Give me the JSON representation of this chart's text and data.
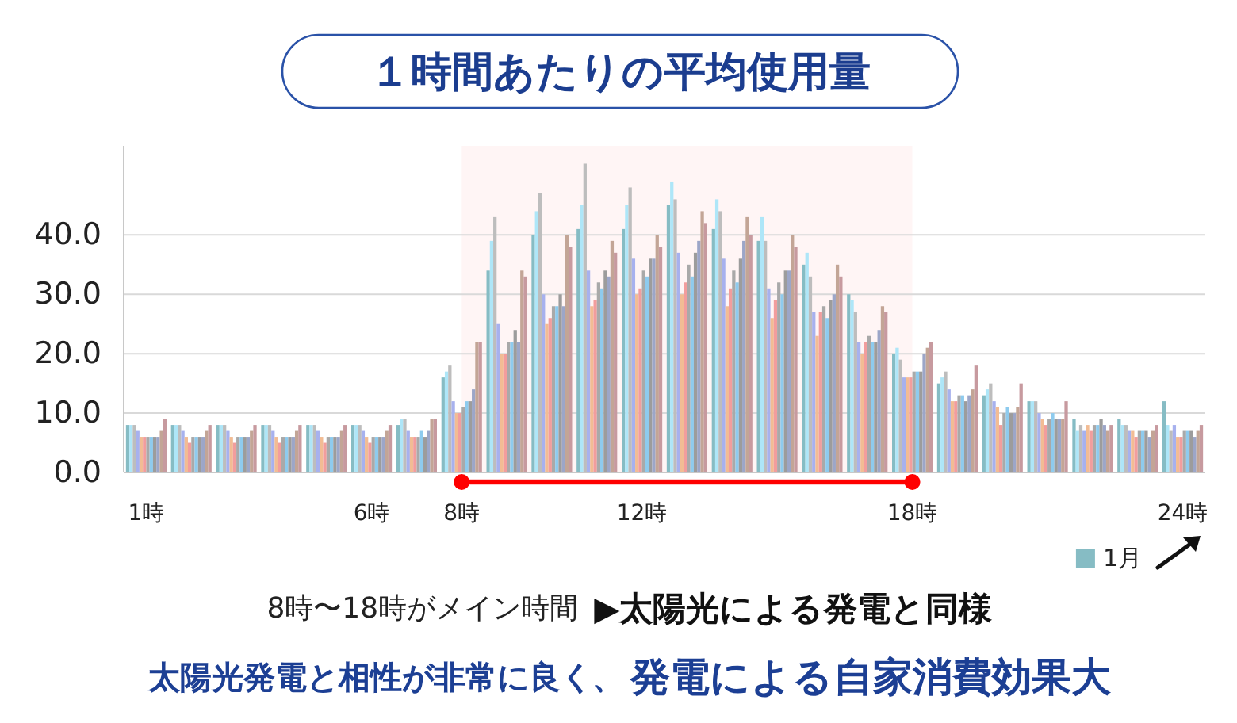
{
  "chart_data": {
    "type": "bar",
    "title": "１時間あたりの平均使用量",
    "x": [
      1,
      2,
      3,
      4,
      5,
      6,
      7,
      8,
      9,
      10,
      11,
      12,
      13,
      14,
      15,
      16,
      17,
      18,
      19,
      20,
      21,
      22,
      23,
      24
    ],
    "xlim": [
      0.5,
      24.5
    ],
    "xticks": [
      {
        "value": 1,
        "label": "1時"
      },
      {
        "value": 6,
        "label": "6時"
      },
      {
        "value": 8,
        "label": "8時"
      },
      {
        "value": 12,
        "label": "12時"
      },
      {
        "value": 18,
        "label": "18時"
      },
      {
        "value": 24,
        "label": "24時"
      }
    ],
    "ylim": [
      0,
      55
    ],
    "yticks": [
      {
        "value": 0,
        "label": "0.0"
      },
      {
        "value": 10,
        "label": "10.0"
      },
      {
        "value": 20,
        "label": "20.0"
      },
      {
        "value": 30,
        "label": "30.0"
      },
      {
        "value": 40,
        "label": "40.0"
      }
    ],
    "grid": "y",
    "legend": "bottom right",
    "bands": [
      {
        "axis": "x",
        "from": 8,
        "to": 18,
        "color": "#ff0000"
      }
    ],
    "annotations": [
      "8時〜18時がメイン時間",
      "▶太陽光による発電と同様",
      "太陽光発電と相性が非常に良く、",
      "発電による自家消費効果大"
    ],
    "series": [
      {
        "name": "1月",
        "color": "#86bcc4",
        "values": [
          8,
          8,
          8,
          8,
          8,
          8,
          8,
          16,
          34,
          40,
          41,
          41,
          45,
          41,
          39,
          35,
          30,
          20,
          15,
          13,
          12,
          9,
          9,
          12
        ]
      },
      {
        "color": "#aee6f8",
        "values": [
          8,
          8,
          8,
          8,
          8,
          8,
          9,
          17,
          39,
          44,
          45,
          45,
          49,
          46,
          43,
          37,
          29,
          21,
          16,
          14,
          12,
          7,
          8,
          8
        ]
      },
      {
        "color": "#bdbdbd",
        "values": [
          8,
          8,
          8,
          8,
          8,
          8,
          9,
          18,
          43,
          47,
          52,
          48,
          46,
          44,
          39,
          33,
          27,
          19,
          17,
          15,
          12,
          8,
          8,
          7
        ]
      },
      {
        "color": "#a7b1ee",
        "values": [
          7,
          7,
          7,
          7,
          7,
          7,
          7,
          12,
          25,
          30,
          34,
          36,
          37,
          36,
          31,
          27,
          22,
          16,
          14,
          12,
          10,
          7,
          7,
          8
        ]
      },
      {
        "color": "#f2bc94",
        "values": [
          6,
          6,
          6,
          6,
          6,
          6,
          6,
          10,
          20,
          25,
          28,
          30,
          30,
          28,
          26,
          23,
          20,
          16,
          12,
          11,
          9,
          8,
          7,
          6
        ]
      },
      {
        "color": "#f29d9d",
        "values": [
          6,
          5,
          5,
          5,
          5,
          5,
          6,
          10,
          20,
          26,
          29,
          31,
          32,
          31,
          29,
          27,
          22,
          16,
          12,
          8,
          8,
          7,
          6,
          6
        ]
      },
      {
        "color": "#a9a9a9",
        "values": [
          6,
          6,
          6,
          6,
          6,
          6,
          6,
          11,
          22,
          28,
          32,
          34,
          35,
          34,
          32,
          28,
          23,
          17,
          13,
          10,
          9,
          8,
          7,
          7
        ]
      },
      {
        "color": "#8ecbee",
        "values": [
          6,
          6,
          6,
          6,
          6,
          6,
          7,
          12,
          22,
          28,
          31,
          33,
          33,
          32,
          30,
          26,
          22,
          17,
          13,
          11,
          10,
          8,
          7,
          7
        ]
      },
      {
        "color": "#9c9c9c",
        "values": [
          6,
          6,
          6,
          6,
          6,
          6,
          6,
          12,
          24,
          30,
          34,
          36,
          37,
          36,
          34,
          29,
          22,
          17,
          12,
          10,
          9,
          9,
          7,
          7
        ]
      },
      {
        "color": "#9ca6c8",
        "values": [
          6,
          6,
          6,
          6,
          6,
          6,
          7,
          14,
          22,
          28,
          33,
          36,
          39,
          39,
          34,
          30,
          24,
          20,
          13,
          10,
          9,
          8,
          6,
          6
        ]
      },
      {
        "color": "#c3a596",
        "values": [
          7,
          7,
          7,
          7,
          7,
          7,
          9,
          22,
          34,
          40,
          39,
          40,
          44,
          43,
          40,
          35,
          28,
          21,
          14,
          11,
          9,
          7,
          7,
          7
        ]
      },
      {
        "color": "#c79a9f",
        "values": [
          9,
          8,
          8,
          8,
          8,
          8,
          9,
          22,
          33,
          38,
          37,
          38,
          42,
          40,
          38,
          33,
          27,
          22,
          18,
          15,
          12,
          8,
          8,
          8
        ]
      }
    ]
  }
}
